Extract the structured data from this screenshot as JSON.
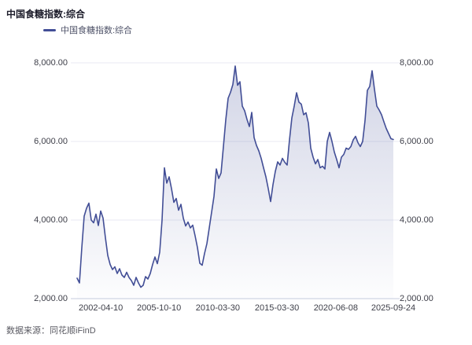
{
  "header": {
    "title": "中国食糖指数:综合"
  },
  "legend": {
    "label": "中国食糖指数:综合"
  },
  "footer": {
    "source": "数据来源：同花顺iFinD"
  },
  "colors": {
    "line": "#424e96",
    "fill_top": "rgba(66,78,150,0.24)",
    "fill_bottom": "rgba(66,78,150,0.01)",
    "grid": "#e8eaf3",
    "axis": "#c6cbde",
    "title_text": "#1d1d2b",
    "axis_text": "#3d3e48",
    "legend_text": "#4e5268",
    "source_text": "#5b5b63"
  },
  "chart_data": {
    "type": "area",
    "title": "中国食糖指数:综合",
    "xlabel": "",
    "ylabel": "",
    "ylim": [
      2000,
      8000
    ],
    "grid": true,
    "legend_position": "top-left",
    "x_range": [
      "2002-04-10",
      "2025-09-24"
    ],
    "y_ticks": [
      {
        "label": "8,000.00",
        "value": 8000
      },
      {
        "label": "6,000.00",
        "value": 6000
      },
      {
        "label": "4,000.00",
        "value": 4000
      },
      {
        "label": "2,000.00",
        "value": 2000
      }
    ],
    "x_ticks": [
      {
        "label": "2002-04-10",
        "pos": 0.075
      },
      {
        "label": "2005-10-10",
        "pos": 0.259
      },
      {
        "label": "2010-03-30",
        "pos": 0.445
      },
      {
        "label": "2015-03-30",
        "pos": 0.632
      },
      {
        "label": "2020-06-08",
        "pos": 0.818
      },
      {
        "label": "2025-09-24",
        "pos": 1.0
      }
    ],
    "series": [
      {
        "name": "中国食糖指数:综合",
        "values": [
          2520,
          2400,
          3300,
          4100,
          4300,
          4430,
          4000,
          3930,
          4150,
          3860,
          4230,
          4050,
          3550,
          3100,
          2870,
          2740,
          2810,
          2640,
          2760,
          2600,
          2540,
          2670,
          2540,
          2460,
          2340,
          2540,
          2400,
          2290,
          2340,
          2560,
          2500,
          2640,
          2870,
          3060,
          2890,
          3180,
          4000,
          5330,
          4940,
          5100,
          4800,
          4450,
          4550,
          4250,
          4400,
          4050,
          3850,
          3950,
          3800,
          3870,
          3600,
          3300,
          2900,
          2850,
          3150,
          3400,
          3800,
          4200,
          4600,
          5300,
          5060,
          5200,
          5870,
          6550,
          7100,
          7250,
          7450,
          7920,
          7430,
          7520,
          6900,
          6780,
          6560,
          6380,
          6740,
          6100,
          5900,
          5760,
          5570,
          5330,
          5100,
          4800,
          4470,
          4900,
          5240,
          5480,
          5400,
          5570,
          5470,
          5400,
          6040,
          6600,
          6900,
          7240,
          7000,
          6950,
          6680,
          6730,
          6470,
          5830,
          5600,
          5430,
          5540,
          5330,
          5370,
          5300,
          6000,
          6230,
          6000,
          5730,
          5540,
          5330,
          5600,
          5670,
          5830,
          5800,
          5870,
          6040,
          6130,
          5970,
          5870,
          6000,
          6530,
          7300,
          7400,
          7800,
          7330,
          6900,
          6800,
          6680,
          6500,
          6330,
          6200,
          6070,
          6050
        ]
      }
    ]
  }
}
